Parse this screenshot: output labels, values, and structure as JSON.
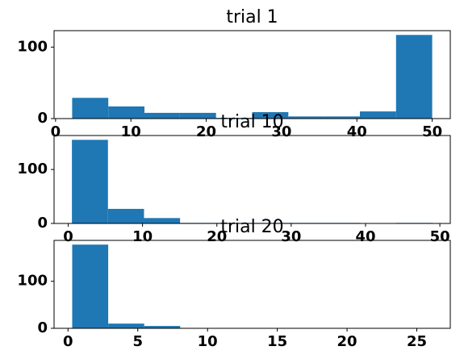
{
  "chart_data": [
    {
      "type": "histogram",
      "title": "trial 1",
      "color": "#1f77b4",
      "bins": [
        2.2,
        7.0,
        11.8,
        16.5,
        21.3,
        26.1,
        30.9,
        35.7,
        40.4,
        45.2,
        50
      ],
      "values": [
        29,
        17,
        8,
        8,
        1,
        9,
        3,
        3,
        10,
        117
      ],
      "xlim": [
        -0.2,
        52.4
      ],
      "xticks": [
        0,
        10,
        20,
        30,
        40,
        50
      ],
      "ylim": [
        0,
        123
      ],
      "yticks": [
        0,
        100
      ]
    },
    {
      "type": "histogram",
      "title": "trial 10",
      "color": "#1f77b4",
      "bins": [
        0.5,
        5.35,
        10.2,
        15.05,
        19.9,
        24.75,
        29.6,
        34.45,
        39.3,
        44.15,
        49
      ],
      "values": [
        155,
        27,
        10,
        1,
        1,
        1,
        1,
        1,
        0,
        1
      ],
      "xlim": [
        -1.9,
        51.4
      ],
      "xticks": [
        0,
        10,
        20,
        30,
        40,
        50
      ],
      "ylim": [
        0,
        163
      ],
      "yticks": [
        0,
        100
      ]
    },
    {
      "type": "histogram",
      "title": "trial 20",
      "color": "#1f77b4",
      "bins": [
        0.3,
        2.88,
        5.46,
        8.04,
        10.62,
        13.2,
        15.78,
        18.36,
        20.94,
        23.52,
        26.1
      ],
      "values": [
        178,
        10,
        5,
        0,
        0,
        0,
        0,
        0,
        0,
        0
      ],
      "xlim": [
        -1.0,
        27.4
      ],
      "xticks": [
        0,
        5,
        10,
        15,
        20,
        25
      ],
      "ylim": [
        0,
        187
      ],
      "yticks": [
        0,
        100
      ]
    }
  ]
}
